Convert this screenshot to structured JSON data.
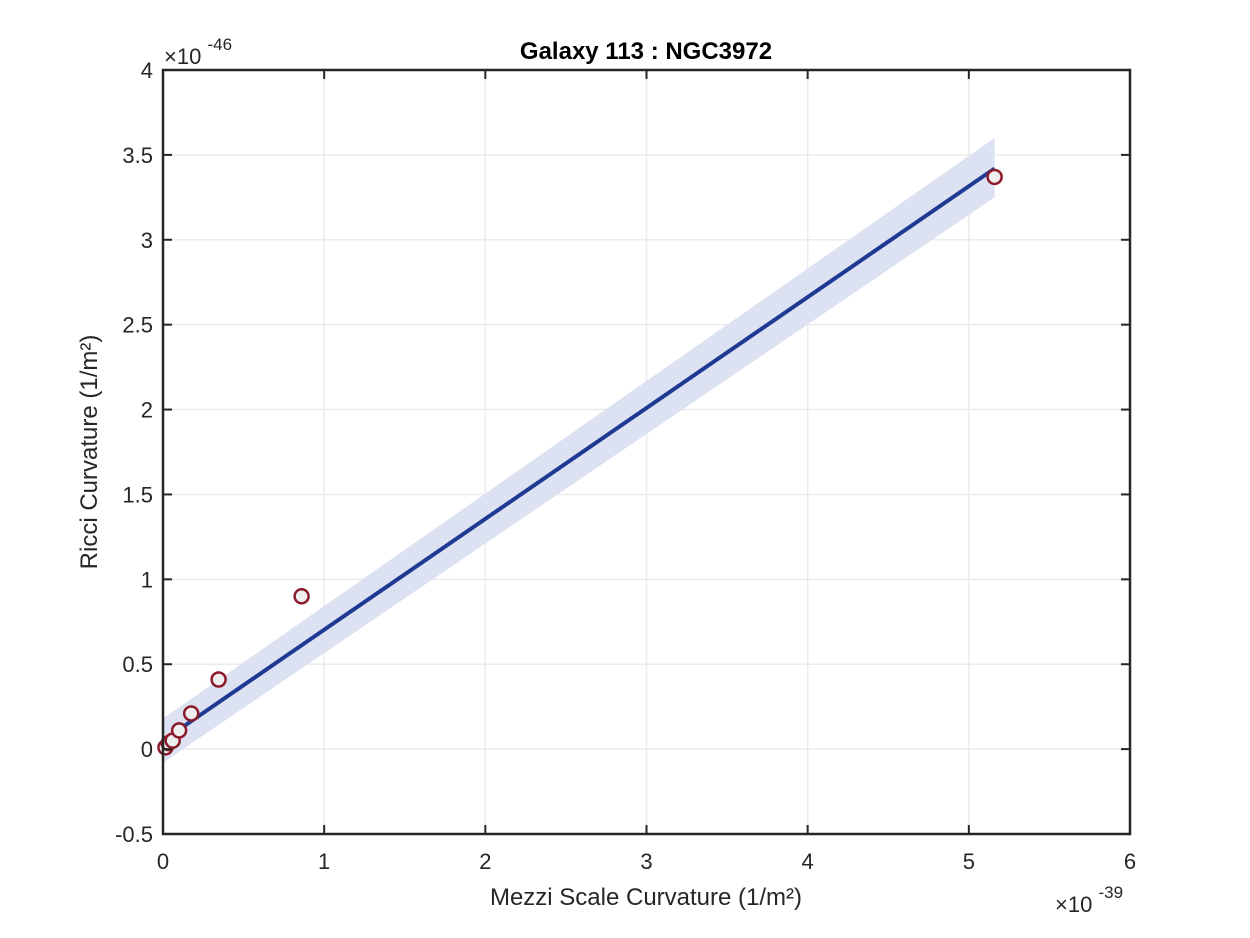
{
  "chart_data": {
    "type": "scatter",
    "title": "Galaxy 113 : NGC3972",
    "xlabel": "Mezzi Scale Curvature (1/m²)",
    "ylabel": "Ricci Curvature (1/m²)",
    "x_multiplier": {
      "base": "×10",
      "exponent": "-39"
    },
    "y_multiplier": {
      "base": "×10",
      "exponent": "-46"
    },
    "xlim": [
      0,
      6e-39
    ],
    "ylim": [
      -5e-47,
      4e-46
    ],
    "xticks": [
      0,
      1e-39,
      2e-39,
      3e-39,
      4e-39,
      5e-39,
      6e-39
    ],
    "xtick_labels": [
      "0",
      "1",
      "2",
      "3",
      "4",
      "5",
      "6"
    ],
    "yticks": [
      -5e-47,
      0,
      5e-47,
      1e-46,
      1.5e-46,
      2e-46,
      2.5e-46,
      3e-46,
      3.5e-46,
      4e-46
    ],
    "ytick_labels": [
      "-0.5",
      "0",
      "0.5",
      "1",
      "1.5",
      "2",
      "2.5",
      "3",
      "3.5",
      "4"
    ],
    "grid": true,
    "series": [
      {
        "kind": "scatter",
        "points": [
          {
            "x": 1.5e-41,
            "y": 1e-48
          },
          {
            "x": 3.5e-41,
            "y": 3.5e-48
          },
          {
            "x": 6e-41,
            "y": 5e-48
          },
          {
            "x": 1e-40,
            "y": 1.1e-47
          },
          {
            "x": 1.75e-40,
            "y": 2.1e-47
          },
          {
            "x": 3.45e-40,
            "y": 4.1e-47
          },
          {
            "x": 8.6e-40,
            "y": 9e-47
          },
          {
            "x": 5.16e-39,
            "y": 3.37e-46
          }
        ]
      },
      {
        "kind": "line",
        "x": [
          0,
          5.16e-39
        ],
        "y": [
          5e-48,
          3.42e-46
        ]
      },
      {
        "kind": "band",
        "x": [
          0,
          5.16e-39
        ],
        "lower": [
          -8e-48,
          3.25e-46
        ],
        "upper": [
          1.8e-47,
          3.6e-46
        ]
      }
    ],
    "colors": {
      "fit_line": "#1f3a93",
      "band": "#dde2f2",
      "marker_edge": "#8b1a2b",
      "marker_face": "#eeeeee",
      "grid": "#ebebeb",
      "axes": "#262626"
    }
  }
}
